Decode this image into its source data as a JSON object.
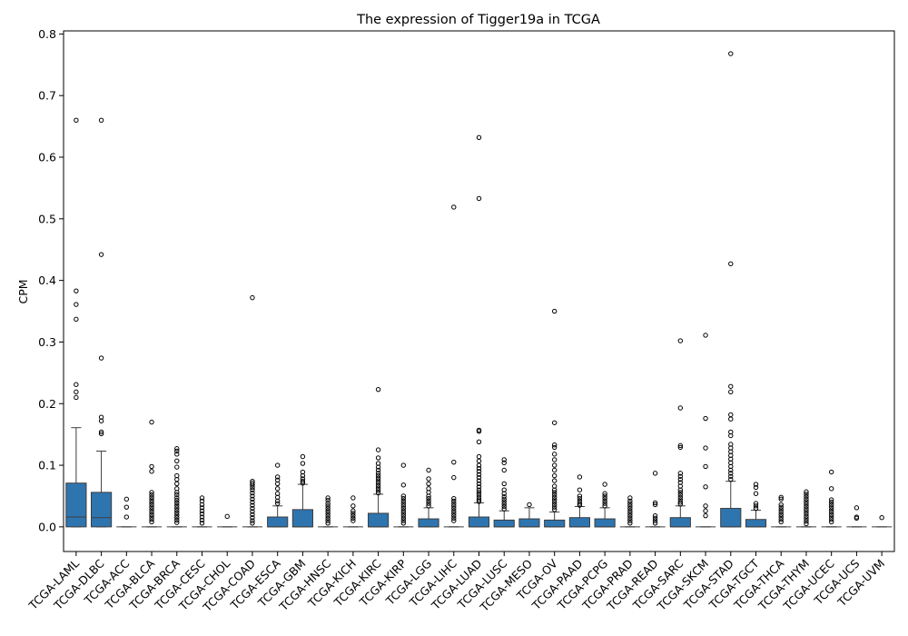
{
  "chart_data": {
    "type": "box",
    "title": "The expression of Tigger19a in TCGA",
    "xlabel": "",
    "ylabel": "CPM",
    "ylim": [
      -0.04,
      0.805
    ],
    "yticks": [
      "0.0",
      "0.1",
      "0.2",
      "0.3",
      "0.4",
      "0.5",
      "0.6",
      "0.7",
      "0.8"
    ],
    "grid": false,
    "colors": {
      "box_fill": "#2e75b0",
      "line": "#3d3d3d"
    },
    "categories": [
      "TCGA-LAML",
      "TCGA-DLBC",
      "TCGA-ACC",
      "TCGA-BLCA",
      "TCGA-BRCA",
      "TCGA-CESC",
      "TCGA-CHOL",
      "TCGA-COAD",
      "TCGA-ESCA",
      "TCGA-GBM",
      "TCGA-HNSC",
      "TCGA-KICH",
      "TCGA-KIRC",
      "TCGA-KIRP",
      "TCGA-LGG",
      "TCGA-LIHC",
      "TCGA-LUAD",
      "TCGA-LUSC",
      "TCGA-MESO",
      "TCGA-OV",
      "TCGA-PAAD",
      "TCGA-PCPG",
      "TCGA-PRAD",
      "TCGA-READ",
      "TCGA-SARC",
      "TCGA-SKCM",
      "TCGA-STAD",
      "TCGA-TGCT",
      "TCGA-THCA",
      "TCGA-THYM",
      "TCGA-UCEC",
      "TCGA-UCS",
      "TCGA-UVM"
    ],
    "boxes": [
      {
        "q1": 0,
        "median": 0.016,
        "q3": 0.071,
        "whislo": 0,
        "whishi": 0.161,
        "outliers": [
          0.66,
          0.383,
          0.361,
          0.337,
          0.231,
          0.219,
          0.21
        ]
      },
      {
        "q1": 0,
        "median": 0.015,
        "q3": 0.056,
        "whislo": 0,
        "whishi": 0.123,
        "outliers": [
          0.66,
          0.442,
          0.274,
          0.178,
          0.172,
          0.154,
          0.151
        ]
      },
      {
        "q1": 0,
        "median": 0,
        "q3": 0,
        "whislo": 0,
        "whishi": 0,
        "outliers": [
          0.045,
          0.032,
          0.016
        ]
      },
      {
        "q1": 0,
        "median": 0,
        "q3": 0,
        "whislo": 0,
        "whishi": 0,
        "outliers": [
          0.17,
          0.098,
          0.09,
          0.056,
          0.052,
          0.048,
          0.044,
          0.04,
          0.036,
          0.032,
          0.028,
          0.024,
          0.02,
          0.016,
          0.012,
          0.008
        ]
      },
      {
        "q1": 0,
        "median": 0,
        "q3": 0,
        "whislo": 0,
        "whishi": 0,
        "outliers": [
          0.127,
          0.123,
          0.118,
          0.107,
          0.097,
          0.083,
          0.077,
          0.07,
          0.062,
          0.056,
          0.052,
          0.047,
          0.043,
          0.039,
          0.035,
          0.031,
          0.027,
          0.023,
          0.019,
          0.015,
          0.011,
          0.007
        ]
      },
      {
        "q1": 0,
        "median": 0,
        "q3": 0,
        "whislo": 0,
        "whishi": 0,
        "outliers": [
          0.047,
          0.042,
          0.036,
          0.031,
          0.026,
          0.021,
          0.016,
          0.011,
          0.006
        ]
      },
      {
        "q1": 0,
        "median": 0,
        "q3": 0,
        "whislo": 0,
        "whishi": 0,
        "outliers": [
          0.017
        ]
      },
      {
        "q1": 0,
        "median": 0,
        "q3": 0,
        "whislo": 0,
        "whishi": 0,
        "outliers": [
          0.372,
          0.074,
          0.071,
          0.068,
          0.064,
          0.06,
          0.055,
          0.05,
          0.045,
          0.04,
          0.035,
          0.03,
          0.025,
          0.02,
          0.015,
          0.01,
          0.006
        ]
      },
      {
        "q1": 0,
        "median": 0,
        "q3": 0.016,
        "whislo": 0,
        "whishi": 0.034,
        "outliers": [
          0.1,
          0.081,
          0.076,
          0.07,
          0.062,
          0.054,
          0.048,
          0.042,
          0.038
        ]
      },
      {
        "q1": 0,
        "median": 0,
        "q3": 0.028,
        "whislo": 0,
        "whishi": 0.069,
        "outliers": [
          0.114,
          0.103,
          0.089,
          0.083,
          0.078,
          0.074,
          0.071
        ]
      },
      {
        "q1": 0,
        "median": 0,
        "q3": 0,
        "whislo": 0,
        "whishi": 0,
        "outliers": [
          0.047,
          0.043,
          0.038,
          0.034,
          0.03,
          0.026,
          0.022,
          0.018,
          0.014,
          0.01,
          0.006
        ]
      },
      {
        "q1": 0,
        "median": 0,
        "q3": 0,
        "whislo": 0,
        "whishi": 0,
        "outliers": [
          0.047,
          0.034,
          0.026,
          0.022,
          0.018,
          0.014,
          0.01
        ]
      },
      {
        "q1": 0,
        "median": 0,
        "q3": 0.022,
        "whislo": 0,
        "whishi": 0.053,
        "outliers": [
          0.223,
          0.125,
          0.112,
          0.103,
          0.097,
          0.092,
          0.087,
          0.083,
          0.079,
          0.075,
          0.071,
          0.067,
          0.063,
          0.059,
          0.055
        ]
      },
      {
        "q1": 0,
        "median": 0,
        "q3": 0,
        "whislo": 0,
        "whishi": 0,
        "outliers": [
          0.1,
          0.068,
          0.05,
          0.046,
          0.042,
          0.038,
          0.034,
          0.03,
          0.026,
          0.022,
          0.018,
          0.014,
          0.01,
          0.006
        ]
      },
      {
        "q1": 0,
        "median": 0,
        "q3": 0.013,
        "whislo": 0,
        "whishi": 0.031,
        "outliers": [
          0.092,
          0.078,
          0.07,
          0.062,
          0.056,
          0.05,
          0.046,
          0.042,
          0.038,
          0.034
        ]
      },
      {
        "q1": 0,
        "median": 0,
        "q3": 0,
        "whislo": 0,
        "whishi": 0,
        "outliers": [
          0.519,
          0.105,
          0.08,
          0.046,
          0.042,
          0.038,
          0.034,
          0.03,
          0.026,
          0.022,
          0.018,
          0.014,
          0.01
        ]
      },
      {
        "q1": 0,
        "median": 0,
        "q3": 0.016,
        "whislo": 0,
        "whishi": 0.039,
        "outliers": [
          0.632,
          0.533,
          0.157,
          0.155,
          0.138,
          0.114,
          0.107,
          0.1,
          0.095,
          0.09,
          0.085,
          0.08,
          0.075,
          0.07,
          0.065,
          0.06,
          0.056,
          0.052,
          0.048,
          0.044,
          0.041
        ]
      },
      {
        "q1": 0,
        "median": 0,
        "q3": 0.011,
        "whislo": 0,
        "whishi": 0.026,
        "outliers": [
          0.109,
          0.104,
          0.092,
          0.07,
          0.06,
          0.054,
          0.049,
          0.045,
          0.041,
          0.037,
          0.033,
          0.029
        ]
      },
      {
        "q1": 0,
        "median": 0,
        "q3": 0.013,
        "whislo": 0,
        "whishi": 0.031,
        "outliers": [
          0.036
        ]
      },
      {
        "q1": 0,
        "median": 0,
        "q3": 0.011,
        "whislo": 0,
        "whishi": 0.024,
        "outliers": [
          0.35,
          0.169,
          0.133,
          0.129,
          0.118,
          0.109,
          0.1,
          0.092,
          0.083,
          0.075,
          0.066,
          0.06,
          0.056,
          0.052,
          0.048,
          0.044,
          0.04,
          0.036,
          0.032,
          0.028
        ]
      },
      {
        "q1": 0,
        "median": 0,
        "q3": 0.015,
        "whislo": 0,
        "whishi": 0.033,
        "outliers": [
          0.081,
          0.06,
          0.05,
          0.046,
          0.042,
          0.038,
          0.035
        ]
      },
      {
        "q1": 0,
        "median": 0,
        "q3": 0.013,
        "whislo": 0,
        "whishi": 0.031,
        "outliers": [
          0.069,
          0.054,
          0.05,
          0.046,
          0.042,
          0.038,
          0.034
        ]
      },
      {
        "q1": 0,
        "median": 0,
        "q3": 0,
        "whislo": 0,
        "whishi": 0,
        "outliers": [
          0.047,
          0.042,
          0.038,
          0.034,
          0.03,
          0.026,
          0.022,
          0.018,
          0.014,
          0.01,
          0.006
        ]
      },
      {
        "q1": 0,
        "median": 0,
        "q3": 0,
        "whislo": 0,
        "whishi": 0,
        "outliers": [
          0.087,
          0.039,
          0.036,
          0.018,
          0.014,
          0.01,
          0.006
        ]
      },
      {
        "q1": 0,
        "median": 0,
        "q3": 0.015,
        "whislo": 0,
        "whishi": 0.034,
        "outliers": [
          0.302,
          0.193,
          0.132,
          0.129,
          0.087,
          0.082,
          0.077,
          0.072,
          0.066,
          0.06,
          0.056,
          0.052,
          0.048,
          0.044,
          0.04,
          0.037
        ]
      },
      {
        "q1": 0,
        "median": 0,
        "q3": 0,
        "whislo": 0,
        "whishi": 0,
        "outliers": [
          0.311,
          0.176,
          0.128,
          0.098,
          0.065,
          0.034,
          0.026,
          0.018
        ]
      },
      {
        "q1": 0,
        "median": 0,
        "q3": 0.03,
        "whislo": 0,
        "whishi": 0.074,
        "outliers": [
          0.768,
          0.427,
          0.228,
          0.219,
          0.182,
          0.175,
          0.154,
          0.148,
          0.134,
          0.128,
          0.122,
          0.116,
          0.11,
          0.104,
          0.098,
          0.092,
          0.087,
          0.082,
          0.077
        ]
      },
      {
        "q1": 0,
        "median": 0,
        "q3": 0.012,
        "whislo": 0,
        "whishi": 0.027,
        "outliers": [
          0.069,
          0.064,
          0.054,
          0.038,
          0.034,
          0.03
        ]
      },
      {
        "q1": 0,
        "median": 0,
        "q3": 0,
        "whislo": 0,
        "whishi": 0,
        "outliers": [
          0.048,
          0.045,
          0.036,
          0.032,
          0.028,
          0.024,
          0.02,
          0.016,
          0.012,
          0.008
        ]
      },
      {
        "q1": 0,
        "median": 0,
        "q3": 0,
        "whislo": 0,
        "whishi": 0,
        "outliers": [
          0.057,
          0.053,
          0.049,
          0.045,
          0.041,
          0.037,
          0.033,
          0.029,
          0.025,
          0.021,
          0.017,
          0.013,
          0.009,
          0.005
        ]
      },
      {
        "q1": 0,
        "median": 0,
        "q3": 0,
        "whislo": 0,
        "whishi": 0,
        "outliers": [
          0.089,
          0.062,
          0.044,
          0.04,
          0.036,
          0.032,
          0.028,
          0.024,
          0.02,
          0.016,
          0.012,
          0.008
        ]
      },
      {
        "q1": 0,
        "median": 0,
        "q3": 0,
        "whislo": 0,
        "whishi": 0,
        "outliers": [
          0.031,
          0.016,
          0.014
        ]
      },
      {
        "q1": 0,
        "median": 0,
        "q3": 0,
        "whislo": 0,
        "whishi": 0,
        "outliers": [
          0.015
        ]
      }
    ]
  }
}
